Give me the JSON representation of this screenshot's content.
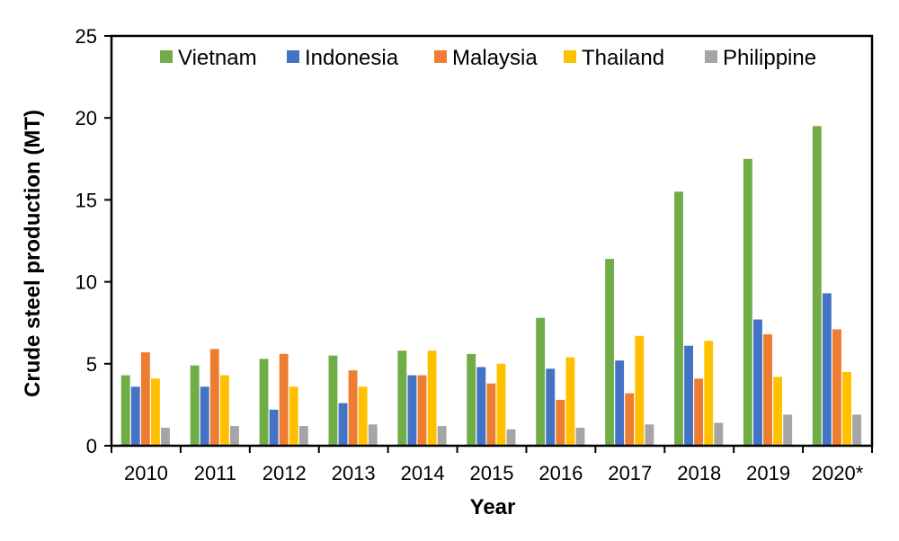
{
  "chart_data": {
    "type": "bar",
    "xlabel": "Year",
    "ylabel": "Crude steel production (MT)",
    "ylim": [
      0,
      25
    ],
    "yticks": [
      0,
      5,
      10,
      15,
      20,
      25
    ],
    "grid": false,
    "legend_position": "top",
    "categories": [
      "2010",
      "2011",
      "2012",
      "2013",
      "2014",
      "2015",
      "2016",
      "2017",
      "2018",
      "2019",
      "2020*"
    ],
    "series": [
      {
        "name": "Vietnam",
        "color": "#70ad47",
        "values": [
          4.3,
          4.9,
          5.3,
          5.5,
          5.8,
          5.6,
          7.8,
          11.4,
          15.5,
          17.5,
          19.5
        ]
      },
      {
        "name": "Indonesia",
        "color": "#4472c4",
        "values": [
          3.6,
          3.6,
          2.2,
          2.6,
          4.3,
          4.8,
          4.7,
          5.2,
          6.1,
          7.7,
          9.3
        ]
      },
      {
        "name": "Malaysia",
        "color": "#ed7d31",
        "values": [
          5.7,
          5.9,
          5.6,
          4.6,
          4.3,
          3.8,
          2.8,
          3.2,
          4.1,
          6.8,
          7.1
        ]
      },
      {
        "name": "Thailand",
        "color": "#ffc000",
        "values": [
          4.1,
          4.3,
          3.6,
          3.6,
          5.8,
          5.0,
          5.4,
          6.7,
          6.4,
          4.2,
          4.5
        ]
      },
      {
        "name": "Philippine",
        "color": "#a5a5a5",
        "values": [
          1.1,
          1.2,
          1.2,
          1.3,
          1.2,
          1.0,
          1.1,
          1.3,
          1.4,
          1.9,
          1.9
        ]
      }
    ]
  }
}
